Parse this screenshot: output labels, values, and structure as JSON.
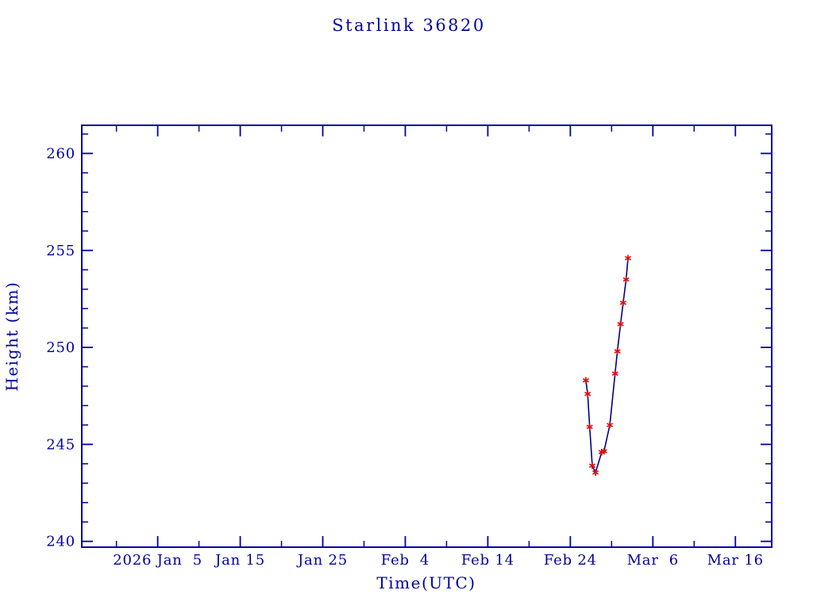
{
  "colors": {
    "axis": "#0000A0",
    "text": "#0000A0",
    "line": "#00008B",
    "marker": "#DD1111",
    "background": "#FFFFFF"
  },
  "chart_data": {
    "type": "line",
    "title": "Starlink 36820",
    "xlabel": "Time(UTC)",
    "ylabel": "Height (km)",
    "grid": false,
    "frame": "box",
    "legend": "none",
    "x_axis": {
      "unit": "days since 2026-01-01 UTC",
      "min": -5.2,
      "max": 78.4,
      "major_ticks": [
        {
          "value": 4,
          "label": "2026 Jan  5"
        },
        {
          "value": 14,
          "label": "Jan 15"
        },
        {
          "value": 24,
          "label": "Jan 25"
        },
        {
          "value": 34,
          "label": "Feb  4"
        },
        {
          "value": 44,
          "label": "Feb 14"
        },
        {
          "value": 54,
          "label": "Feb 24"
        },
        {
          "value": 64,
          "label": "Mar  6"
        },
        {
          "value": 74,
          "label": "Mar 16"
        }
      ],
      "minor_ticks": [
        -1,
        9,
        19,
        29,
        39,
        49,
        59,
        69
      ]
    },
    "y_axis": {
      "unit": "km",
      "min": 239.7,
      "max": 261.45,
      "major_ticks": [
        {
          "value": 240,
          "label": "240"
        },
        {
          "value": 245,
          "label": "245"
        },
        {
          "value": 250,
          "label": "250"
        },
        {
          "value": 255,
          "label": "255"
        },
        {
          "value": 260,
          "label": "260"
        }
      ],
      "minor_tick_step": 1
    },
    "series": [
      {
        "name": "orbit-height",
        "marker": "asterisk",
        "marker_color": "#DD1111",
        "line_color": "#00008B",
        "points": [
          {
            "x": 55.88,
            "y": 248.3
          },
          {
            "x": 56.1,
            "y": 247.6
          },
          {
            "x": 56.34,
            "y": 245.9
          },
          {
            "x": 56.66,
            "y": 243.9
          },
          {
            "x": 57.05,
            "y": 243.55
          },
          {
            "x": 57.8,
            "y": 244.6
          },
          {
            "x": 58.08,
            "y": 244.65
          },
          {
            "x": 58.78,
            "y": 246.0
          },
          {
            "x": 59.42,
            "y": 248.65
          },
          {
            "x": 59.7,
            "y": 249.8
          },
          {
            "x": 60.08,
            "y": 251.2
          },
          {
            "x": 60.4,
            "y": 252.3
          },
          {
            "x": 60.76,
            "y": 253.5
          },
          {
            "x": 60.99,
            "y": 254.6
          }
        ]
      }
    ]
  }
}
